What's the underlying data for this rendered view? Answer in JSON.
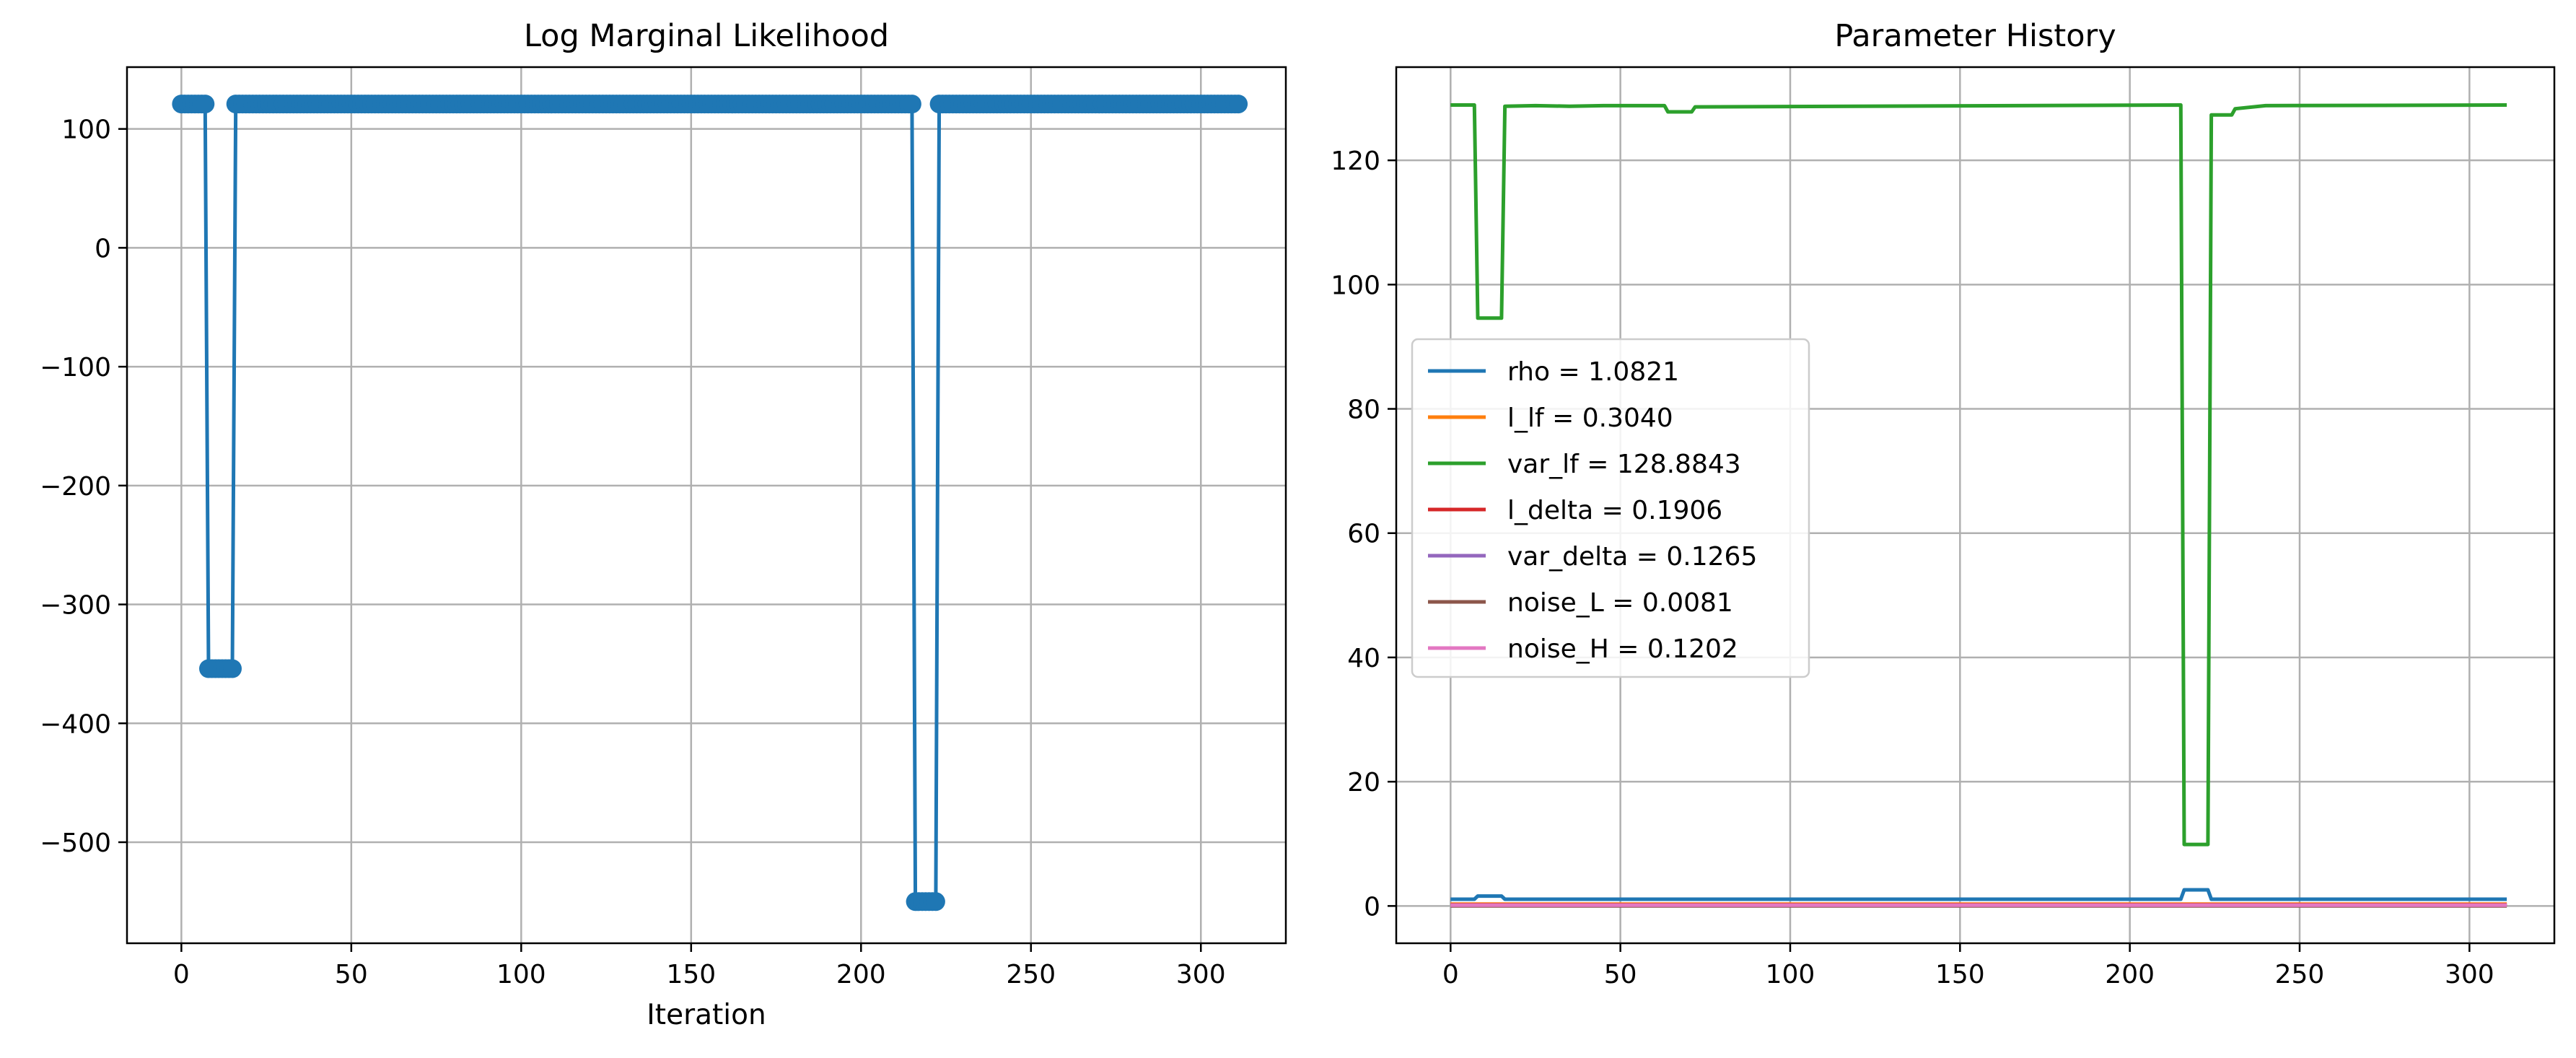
{
  "chart_data": [
    {
      "type": "line",
      "title": "Log Marginal Likelihood",
      "xlabel": "Iteration",
      "ylabel": "",
      "xlim": [
        -16,
        325
      ],
      "ylim": [
        -585,
        152
      ],
      "xticks": [
        0,
        50,
        100,
        150,
        200,
        250,
        300
      ],
      "xtick_labels": [
        "0",
        "50",
        "100",
        "150",
        "200",
        "250",
        "300"
      ],
      "yticks": [
        100,
        0,
        -100,
        -200,
        -300,
        -400,
        -500
      ],
      "ytick_labels": [
        "100",
        "0",
        "−100",
        "−200",
        "−300",
        "−400",
        "−500"
      ],
      "grid": true,
      "markers": true,
      "series": [
        {
          "color": "#1f77b4",
          "x": [
            0,
            7,
            8,
            15,
            16,
            215,
            216,
            222,
            223,
            311
          ],
          "y": [
            121,
            121,
            -354,
            -354,
            121,
            121,
            -550,
            -550,
            121,
            121
          ]
        }
      ]
    },
    {
      "type": "line",
      "title": "Parameter History",
      "xlabel": "",
      "ylabel": "",
      "xlim": [
        -16,
        325
      ],
      "ylim": [
        -6,
        135
      ],
      "xticks": [
        0,
        50,
        100,
        150,
        200,
        250,
        300
      ],
      "xtick_labels": [
        "0",
        "50",
        "100",
        "150",
        "200",
        "250",
        "300"
      ],
      "yticks": [
        0,
        20,
        40,
        60,
        80,
        100,
        120
      ],
      "ytick_labels": [
        "0",
        "20",
        "40",
        "60",
        "80",
        "100",
        "120"
      ],
      "grid": true,
      "legend_position": "center-left",
      "series": [
        {
          "name": "rho = 1.0821",
          "color": "#1f77b4",
          "x": [
            0,
            7,
            8,
            15,
            16,
            215,
            216,
            223,
            224,
            311
          ],
          "y": [
            1.08,
            1.08,
            1.6,
            1.6,
            1.08,
            1.08,
            2.6,
            2.6,
            1.08,
            1.08
          ]
        },
        {
          "name": "l_lf = 0.3040",
          "color": "#ff7f0e",
          "x": [
            0,
            311
          ],
          "y": [
            0.304,
            0.304
          ]
        },
        {
          "name": "var_lf = 128.8843",
          "color": "#2ca02c",
          "x": [
            0,
            7,
            8,
            15,
            16,
            25,
            35,
            45,
            63,
            64,
            71,
            72,
            215,
            216,
            223,
            224,
            230,
            231,
            240,
            311
          ],
          "y": [
            128.9,
            128.9,
            94.6,
            94.6,
            128.7,
            128.8,
            128.7,
            128.8,
            128.8,
            127.8,
            127.8,
            128.6,
            128.9,
            9.9,
            9.9,
            127.3,
            127.3,
            128.3,
            128.8,
            128.9
          ]
        },
        {
          "name": "l_delta = 0.1906",
          "color": "#d62728",
          "x": [
            0,
            311
          ],
          "y": [
            0.19,
            0.19
          ]
        },
        {
          "name": "var_delta = 0.1265",
          "color": "#9467bd",
          "x": [
            0,
            311
          ],
          "y": [
            0.127,
            0.127
          ]
        },
        {
          "name": "noise_L = 0.0081",
          "color": "#8c564b",
          "x": [
            0,
            311
          ],
          "y": [
            0.008,
            0.008
          ]
        },
        {
          "name": "noise_H = 0.1202",
          "color": "#e377c2",
          "x": [
            0,
            311
          ],
          "y": [
            0.12,
            0.12
          ]
        }
      ]
    }
  ]
}
